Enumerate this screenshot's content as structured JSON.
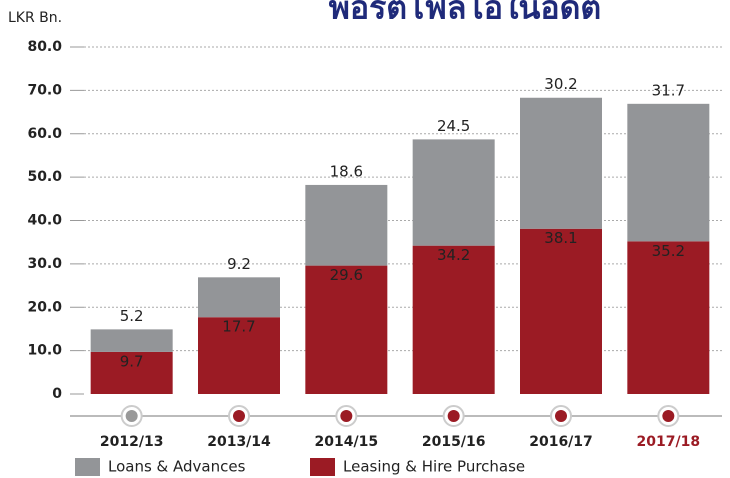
{
  "chart_data": {
    "type": "stacked_bar",
    "title": "พอร์ตโฟลิโอในอดีต",
    "y_label": "LKR Bn.",
    "categories": [
      "2012/13",
      "2013/14",
      "2014/15",
      "2015/16",
      "2016/17",
      "2017/18"
    ],
    "series": [
      {
        "name": "Leasing & Hire Purchase",
        "color": "#9b1b24",
        "values": [
          9.7,
          17.7,
          29.6,
          34.2,
          38.1,
          35.2
        ]
      },
      {
        "name": "Loans & Advances",
        "color": "#939598",
        "values": [
          5.2,
          9.2,
          18.6,
          24.5,
          30.2,
          31.7
        ]
      }
    ],
    "ylim": [
      0,
      80
    ],
    "yticks": [
      0,
      {
        "value": 10,
        "label": "10.0"
      },
      {
        "value": 20,
        "label": "20.0"
      },
      {
        "value": 30,
        "label": "30.0"
      },
      {
        "value": 40,
        "label": "40.0"
      },
      {
        "value": 50,
        "label": "50.0"
      },
      {
        "value": 60,
        "label": "60.0"
      },
      {
        "value": 70,
        "label": "70.0"
      },
      {
        "value": 80,
        "label": "80.0"
      }
    ],
    "grid": true
  }
}
